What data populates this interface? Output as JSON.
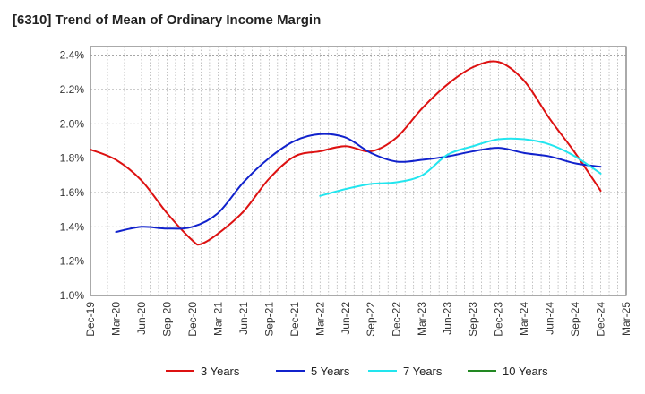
{
  "chart_data": {
    "type": "line",
    "title": "[6310]  Trend of Mean of Ordinary Income Margin",
    "xlabel": "",
    "ylabel": "",
    "x_ticks": [
      "Dec-19",
      "Mar-20",
      "Jun-20",
      "Sep-20",
      "Dec-20",
      "Mar-21",
      "Jun-21",
      "Sep-21",
      "Dec-21",
      "Mar-22",
      "Jun-22",
      "Sep-22",
      "Dec-22",
      "Mar-23",
      "Jun-23",
      "Sep-23",
      "Dec-23",
      "Mar-24",
      "Jun-24",
      "Sep-24",
      "Dec-24",
      "Mar-25"
    ],
    "y_ticks": [
      "1.0%",
      "1.2%",
      "1.4%",
      "1.6%",
      "1.8%",
      "2.0%",
      "2.2%",
      "2.4%"
    ],
    "ylim": [
      1.0,
      2.45
    ],
    "y_unit": "%",
    "grid": true,
    "legend_position": "bottom",
    "series": [
      {
        "name": "3 Years",
        "color": "#dd1111",
        "x": [
          "Dec-19",
          "Mar-20",
          "Jun-20",
          "Sep-20",
          "Dec-20",
          "Jan-21",
          "Mar-21",
          "Jun-21",
          "Sep-21",
          "Dec-21",
          "Mar-22",
          "Jun-22",
          "Sep-22",
          "Dec-22",
          "Mar-23",
          "Jun-23",
          "Sep-23",
          "Dec-23",
          "Mar-24",
          "Jun-24",
          "Sep-24",
          "Dec-24"
        ],
        "values": [
          1.85,
          1.79,
          1.67,
          1.48,
          1.32,
          1.3,
          1.36,
          1.49,
          1.68,
          1.81,
          1.84,
          1.87,
          1.84,
          1.92,
          2.09,
          2.23,
          2.33,
          2.36,
          2.25,
          2.03,
          1.83,
          1.61
        ]
      },
      {
        "name": "5 Years",
        "color": "#1122cc",
        "x": [
          "Dec-19",
          "Mar-20",
          "Jun-20",
          "Sep-20",
          "Dec-20",
          "Mar-21",
          "Jun-21",
          "Sep-21",
          "Dec-21",
          "Mar-22",
          "Jun-22",
          "Sep-22",
          "Dec-22",
          "Mar-23",
          "Jun-23",
          "Sep-23",
          "Dec-23",
          "Mar-24",
          "Jun-24",
          "Sep-24",
          "Dec-24"
        ],
        "values": [
          null,
          1.37,
          1.4,
          1.39,
          1.4,
          1.48,
          1.66,
          1.8,
          1.9,
          1.94,
          1.92,
          1.83,
          1.78,
          1.79,
          1.81,
          1.84,
          1.86,
          1.83,
          1.81,
          1.77,
          1.75
        ]
      },
      {
        "name": "7 Years",
        "color": "#22e5ee",
        "x": [
          "Mar-22",
          "Jun-22",
          "Sep-22",
          "Dec-22",
          "Mar-23",
          "Jun-23",
          "Sep-23",
          "Dec-23",
          "Mar-24",
          "Jun-24",
          "Sep-24",
          "Dec-24"
        ],
        "values": [
          1.58,
          1.62,
          1.65,
          1.66,
          1.7,
          1.82,
          1.87,
          1.91,
          1.91,
          1.88,
          1.81,
          1.71
        ]
      },
      {
        "name": "10 Years",
        "color": "#228822",
        "x": [],
        "values": []
      }
    ]
  }
}
